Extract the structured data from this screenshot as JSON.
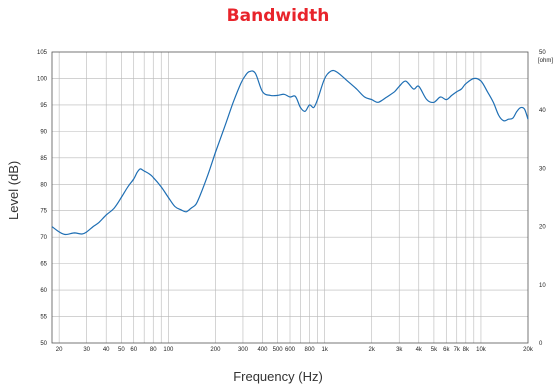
{
  "chart_data": {
    "type": "line",
    "title": "Bandwidth",
    "xlabel": "Frequency (Hz)",
    "ylabel": "Level (dB)",
    "x_scale": "log",
    "xlim": [
      18,
      20000
    ],
    "ylim": [
      50,
      105
    ],
    "y2lim": [
      0,
      50
    ],
    "y2label": "[ohm]",
    "grid": true,
    "x_ticks": [
      {
        "v": 20,
        "t": "20"
      },
      {
        "v": 30,
        "t": "30"
      },
      {
        "v": 40,
        "t": "40"
      },
      {
        "v": 50,
        "t": "50"
      },
      {
        "v": 60,
        "t": "60"
      },
      {
        "v": 80,
        "t": "80"
      },
      {
        "v": 100,
        "t": "100"
      },
      {
        "v": 200,
        "t": "200"
      },
      {
        "v": 300,
        "t": "300"
      },
      {
        "v": 400,
        "t": "400"
      },
      {
        "v": 500,
        "t": "500"
      },
      {
        "v": 600,
        "t": "600"
      },
      {
        "v": 800,
        "t": "800"
      },
      {
        "v": 1000,
        "t": "1k"
      },
      {
        "v": 2000,
        "t": "2k"
      },
      {
        "v": 3000,
        "t": "3k"
      },
      {
        "v": 4000,
        "t": "4k"
      },
      {
        "v": 5000,
        "t": "5k"
      },
      {
        "v": 6000,
        "t": "6k"
      },
      {
        "v": 7000,
        "t": "7k"
      },
      {
        "v": 8000,
        "t": "8k"
      },
      {
        "v": 10000,
        "t": "10k"
      },
      {
        "v": 20000,
        "t": "20k"
      }
    ],
    "y_ticks": [
      "50",
      "55",
      "60",
      "65",
      "70",
      "75",
      "80",
      "85",
      "90",
      "95",
      "100",
      "105"
    ],
    "y2_ticks": [
      {
        "v": 0,
        "t": "0"
      },
      {
        "v": 10,
        "t": "10"
      },
      {
        "v": 20,
        "t": "20"
      },
      {
        "v": 30,
        "t": "30"
      },
      {
        "v": 40,
        "t": "40"
      },
      {
        "v": 50,
        "t": "50"
      }
    ],
    "series": [
      {
        "color": "#1f6fb4",
        "x": [
          18,
          20,
          22,
          25,
          28,
          30,
          33,
          36,
          40,
          45,
          50,
          55,
          60,
          63,
          66,
          70,
          75,
          80,
          90,
          100,
          110,
          120,
          130,
          140,
          150,
          160,
          180,
          200,
          230,
          260,
          290,
          310,
          330,
          360,
          400,
          450,
          500,
          550,
          600,
          650,
          700,
          750,
          800,
          850,
          900,
          1000,
          1100,
          1200,
          1400,
          1600,
          1800,
          2000,
          2200,
          2500,
          2800,
          3000,
          3300,
          3700,
          4000,
          4500,
          5000,
          5500,
          6000,
          6500,
          7000,
          7500,
          8000,
          9000,
          10000,
          11000,
          12000,
          13000,
          14000,
          15000,
          16000,
          17000,
          18000,
          19000,
          20000
        ],
        "y": [
          72.0,
          71.0,
          70.5,
          70.8,
          70.6,
          71.0,
          72.0,
          72.8,
          74.2,
          75.5,
          77.5,
          79.5,
          81.0,
          82.2,
          82.9,
          82.5,
          82.0,
          81.3,
          79.5,
          77.5,
          75.8,
          75.2,
          74.8,
          75.5,
          76.2,
          78.0,
          82.0,
          86.0,
          91.0,
          95.5,
          99.0,
          100.5,
          101.3,
          101.0,
          97.5,
          96.8,
          96.8,
          97.0,
          96.5,
          96.6,
          94.5,
          93.8,
          95.0,
          94.5,
          96.0,
          100.0,
          101.4,
          101.2,
          99.5,
          98.0,
          96.5,
          96.0,
          95.5,
          96.5,
          97.5,
          98.5,
          99.5,
          98.0,
          98.5,
          96.0,
          95.5,
          96.5,
          96.0,
          96.8,
          97.5,
          98.0,
          99.0,
          100.0,
          99.5,
          97.5,
          95.5,
          93.0,
          92.0,
          92.3,
          92.5,
          93.8,
          94.5,
          94.2,
          92.3
        ]
      }
    ]
  }
}
